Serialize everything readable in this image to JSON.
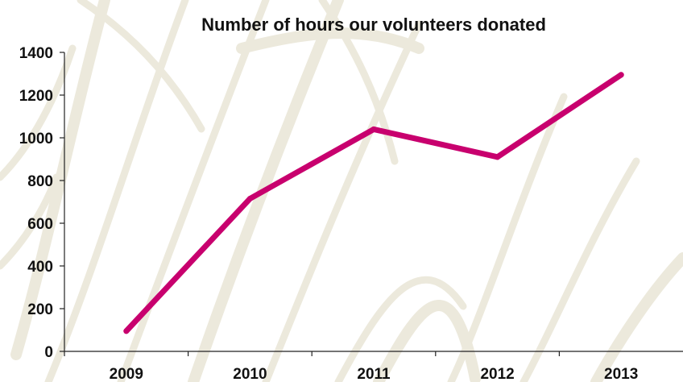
{
  "chart_data": {
    "type": "line",
    "title": "Number of hours our volunteers donated",
    "xlabel": "",
    "ylabel": "",
    "categories": [
      "2009",
      "2010",
      "2011",
      "2012",
      "2013"
    ],
    "series": [
      {
        "values": [
          95,
          715,
          1040,
          910,
          1295
        ]
      }
    ],
    "ylim": [
      0,
      1400
    ],
    "yticks": [
      0,
      200,
      400,
      600,
      800,
      1000,
      1200,
      1400
    ],
    "grid": false,
    "legend": "none",
    "colors": {
      "line": "#c8006e",
      "axis": "#222222",
      "text": "#111111",
      "background_pattern": "#ece9dc"
    }
  }
}
